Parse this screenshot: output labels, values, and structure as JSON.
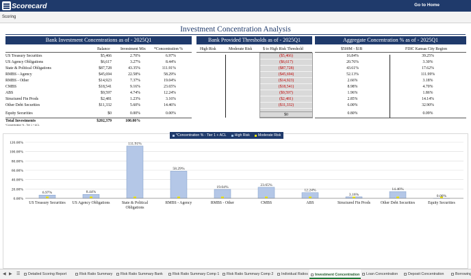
{
  "app": {
    "title": "Scorecard",
    "nav_link": "Go to Home",
    "subbar_label": "Scoring"
  },
  "page": {
    "title": "Investment Concentration Analysis"
  },
  "sections": {
    "bank": "Bank Investment Concentrations as of - 2025Q1",
    "thresholds": "Bank Provided Thresholds as of - 2025Q1",
    "aggregate": "Aggregate Concentration % as of - 2025Q1"
  },
  "columns": {
    "balance": "Balance",
    "investment_mix": "Investment Mix",
    "concentration": "*Concentration %",
    "high_risk": "High Risk",
    "moderate_risk": "Moderate Risk",
    "to_high_risk": "$ to High Risk Threshold",
    "peer_group": "$500M - $1B",
    "region": "FDIC Kansas City Region"
  },
  "rows": [
    {
      "label": "US Treasury Securities",
      "balance": "$5,466",
      "mix": "2.70%",
      "conc": "6.97%",
      "threshold": "($5,466)",
      "peer": "16.84%",
      "region": "39.25%"
    },
    {
      "label": "US Agency Obligations",
      "balance": "$6,617",
      "mix": "3.27%",
      "conc": "8.44%",
      "threshold": "($6,617)",
      "peer": "20.76%",
      "region": "3.30%"
    },
    {
      "label": "State & Political Obligations",
      "balance": "$87,728",
      "mix": "43.35%",
      "conc": "111.91%",
      "threshold": "($87,728)",
      "peer": "43.61%",
      "region": "17.62%"
    },
    {
      "label": "RMBS - Agency",
      "balance": "$45,694",
      "mix": "22.58%",
      "conc": "58.29%",
      "threshold": "($45,694)",
      "peer": "52.13%",
      "region": "111.99%"
    },
    {
      "label": "RMBS - Other",
      "balance": "$14,923",
      "mix": "7.37%",
      "conc": "19.04%",
      "threshold": "($14,923)",
      "peer": "2.66%",
      "region": "3.18%"
    },
    {
      "label": "CMBS",
      "balance": "$18,541",
      "mix": "9.16%",
      "conc": "23.65%",
      "threshold": "($18,541)",
      "peer": "8.98%",
      "region": "4.70%"
    },
    {
      "label": "ABS",
      "balance": "$9,597",
      "mix": "4.74%",
      "conc": "12.24%",
      "threshold": "($9,597)",
      "peer": "1.96%",
      "region": "1.86%"
    },
    {
      "label": "Structured Fin Prods",
      "balance": "$2,481",
      "mix": "1.23%",
      "conc": "3.16%",
      "threshold": "($2,481)",
      "peer": "2.85%",
      "region": "14.14%"
    },
    {
      "label": "Other Debt Securities",
      "balance": "$11,332",
      "mix": "5.60%",
      "conc": "14.46%",
      "threshold": "($11,332)",
      "peer": "6.00%",
      "region": "32.90%"
    },
    {
      "label": "Equity Securities",
      "balance": "$0",
      "mix": "0.00%",
      "conc": "0.00%",
      "threshold": "$0",
      "peer": "0.80%",
      "region": "0.09%"
    }
  ],
  "totals": {
    "label": "Total Investments",
    "balance": "$202,379",
    "mix": "100.00%"
  },
  "footnote": "*Concentration % - Tier 1 + ACL",
  "legend": {
    "concentration": "*Concentration % - Tier 1 + ACL",
    "high": "High Risk",
    "moderate": "Moderate Risk"
  },
  "colors": {
    "header_navy": "#1f3a6b",
    "bar_fill": "#b4c7e7",
    "bar_stroke": "#7f9cc8",
    "moderate_marker": "#f2e600",
    "high_marker": "#9dc3e6",
    "negative_red": "#c00000",
    "active_tab_green": "#1f7a3a"
  },
  "chart_data": {
    "type": "bar",
    "categories": [
      "US Treasury Securities",
      "US Agency Obligations",
      "State & Political Obligations",
      "RMBS - Agency",
      "RMBS - Other",
      "CMBS",
      "ABS",
      "Structured Fin Prods",
      "Other Debt Securities",
      "Equity Securities"
    ],
    "series": [
      {
        "name": "*Concentration % - Tier 1 + ACL",
        "values": [
          6.97,
          8.44,
          111.91,
          58.29,
          19.04,
          23.65,
          12.24,
          3.16,
          14.46,
          0.0
        ]
      },
      {
        "name": "High Risk",
        "values": [
          0,
          0,
          0,
          0,
          0,
          0,
          0,
          0,
          0,
          0
        ]
      },
      {
        "name": "Moderate Risk",
        "values": [
          0,
          0,
          0,
          0,
          0,
          0,
          0,
          0,
          0,
          0
        ]
      }
    ],
    "data_labels": [
      "6.97%",
      "8.44%",
      "111.91%",
      "58.29%",
      "19.04%",
      "23.65%",
      "12.24%",
      "3.16%",
      "14.46%",
      "0.00%"
    ],
    "y_ticks": [
      "0.00%",
      "20.00%",
      "40.00%",
      "60.00%",
      "80.00%",
      "100.00%",
      "120.00%"
    ],
    "ylim": [
      0,
      120
    ],
    "grid": true,
    "legend_position": "top-center"
  },
  "tabs": [
    {
      "label": "Detailed Scoring Report",
      "active": false
    },
    {
      "label": "Risk Ratio Summary",
      "active": false
    },
    {
      "label": "Risk Ratio Summary Bank",
      "active": false
    },
    {
      "label": "Risk Ratio Summary Comp 1",
      "active": false
    },
    {
      "label": "Risk Ratio Summary Comp 2",
      "active": false
    },
    {
      "label": "Individual Ratios",
      "active": false
    },
    {
      "label": "Investment Concentration",
      "active": true
    },
    {
      "label": "Loan Concentration",
      "active": false
    },
    {
      "label": "Deposit Concentration",
      "active": false
    },
    {
      "label": "Borrowing",
      "active": false
    }
  ]
}
